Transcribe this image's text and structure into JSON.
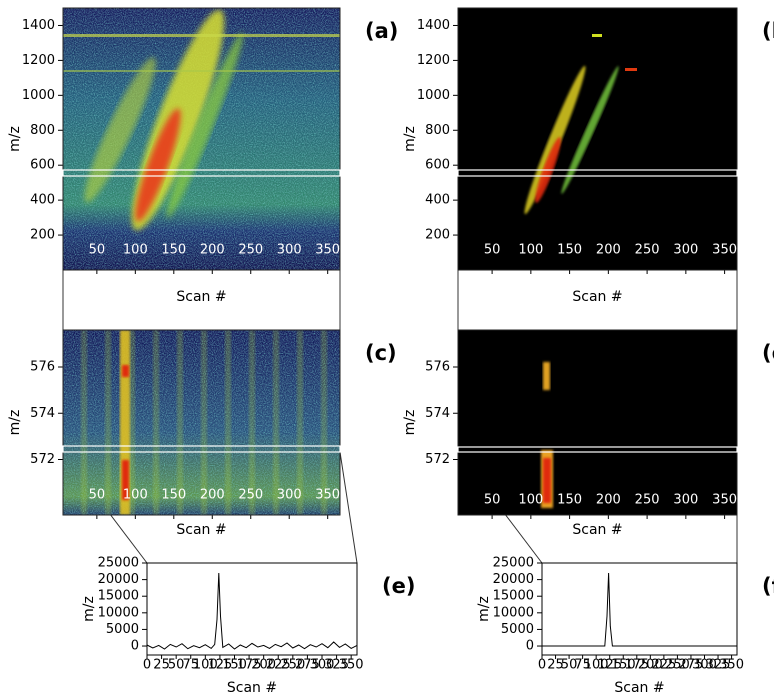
{
  "chart_data": [
    {
      "type": "heatmap",
      "panel_label": "(a)",
      "xlabel": "Scan #",
      "ylabel": "m/z",
      "xlim": [
        6,
        366
      ],
      "ylim": [
        0,
        1500
      ],
      "xticks": [
        50,
        100,
        150,
        200,
        250,
        300,
        350
      ],
      "yticks": [
        200,
        400,
        600,
        800,
        1000,
        1200,
        1400
      ]
    },
    {
      "type": "heatmap",
      "panel_label": "(b)",
      "xlabel": "Scan #",
      "ylabel": "m/z",
      "xlim": [
        6,
        366
      ],
      "ylim": [
        0,
        1500
      ],
      "xticks": [
        50,
        100,
        150,
        200,
        250,
        300,
        350
      ],
      "yticks": [
        200,
        400,
        600,
        800,
        1000,
        1200,
        1400
      ]
    },
    {
      "type": "heatmap",
      "panel_label": "(c)",
      "xlabel": "Scan #",
      "ylabel": "m/z",
      "xlim": [
        6,
        366
      ],
      "ylim": [
        569.6,
        577.6
      ],
      "xticks": [
        50,
        100,
        150,
        200,
        250,
        300,
        350
      ],
      "yticks": [
        572,
        574,
        576
      ]
    },
    {
      "type": "heatmap",
      "panel_label": "(d)",
      "xlabel": "Scan #",
      "ylabel": "m/z",
      "xlim": [
        6,
        366
      ],
      "ylim": [
        569.6,
        577.6
      ],
      "xticks": [
        50,
        100,
        150,
        200,
        250,
        300,
        350
      ],
      "yticks": [
        572,
        574,
        576
      ]
    },
    {
      "type": "line",
      "panel_label": "(e)",
      "xlabel": "Scan #",
      "ylabel": "m/z",
      "xlim": [
        0,
        360
      ],
      "ylim": [
        -2700,
        25000
      ],
      "xticks": [
        0,
        25,
        50,
        75,
        100,
        125,
        150,
        175,
        200,
        225,
        250,
        275,
        300,
        325,
        350
      ],
      "yticks": [
        0,
        5000,
        10000,
        15000,
        20000,
        25000
      ],
      "x": [
        0,
        10,
        20,
        30,
        40,
        50,
        60,
        70,
        80,
        90,
        100,
        110,
        116,
        120,
        123,
        126,
        130,
        140,
        150,
        160,
        170,
        180,
        190,
        200,
        210,
        220,
        230,
        240,
        250,
        260,
        270,
        280,
        290,
        300,
        310,
        320,
        330,
        340,
        350,
        360
      ],
      "series": [
        {
          "color": "#000000",
          "values": [
            300,
            -600,
            200,
            -900,
            500,
            -300,
            700,
            -800,
            100,
            -500,
            400,
            -700,
            500,
            8000,
            22000,
            9000,
            -400,
            600,
            -900,
            300,
            -500,
            800,
            -300,
            200,
            -700,
            500,
            -200,
            900,
            -600,
            300,
            -800,
            400,
            -300,
            700,
            -500,
            1200,
            -400,
            600,
            -700,
            200
          ]
        }
      ]
    },
    {
      "type": "line",
      "panel_label": "(f)",
      "xlabel": "Scan #",
      "ylabel": "m/z",
      "xlim": [
        0,
        360
      ],
      "ylim": [
        -2700,
        25000
      ],
      "xticks": [
        0,
        25,
        50,
        75,
        100,
        125,
        150,
        175,
        200,
        225,
        250,
        275,
        300,
        325,
        350
      ],
      "yticks": [
        0,
        5000,
        10000,
        15000,
        20000,
        25000
      ],
      "x": [
        0,
        10,
        20,
        30,
        40,
        50,
        60,
        70,
        80,
        90,
        100,
        110,
        116,
        120,
        123,
        126,
        130,
        140,
        150,
        160,
        170,
        180,
        190,
        200,
        210,
        220,
        230,
        240,
        250,
        260,
        270,
        280,
        290,
        300,
        310,
        320,
        330,
        340,
        350,
        360
      ],
      "series": [
        {
          "color": "#000000",
          "values": [
            0,
            0,
            0,
            0,
            0,
            0,
            0,
            0,
            0,
            0,
            0,
            0,
            0,
            9000,
            22000,
            6000,
            0,
            0,
            0,
            0,
            0,
            0,
            0,
            0,
            0,
            0,
            0,
            0,
            0,
            0,
            0,
            0,
            0,
            0,
            0,
            0,
            0,
            0,
            0,
            0
          ]
        }
      ]
    }
  ]
}
